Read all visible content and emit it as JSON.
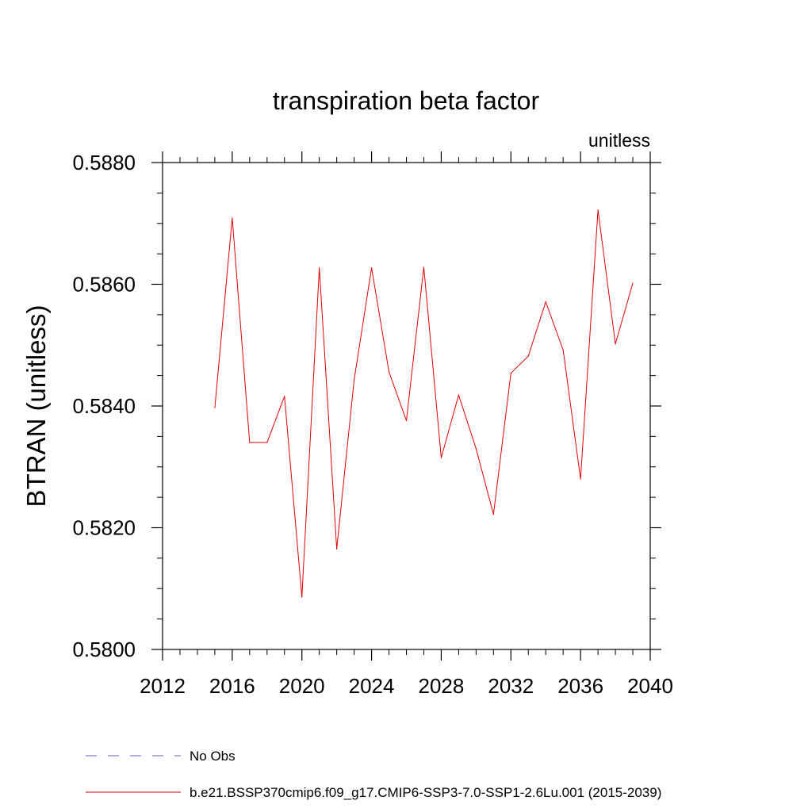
{
  "chart_data": {
    "type": "line",
    "title": "transpiration beta factor",
    "units_label": "unitless",
    "ylabel": "BTRAN  (unitless)",
    "xlabel": "",
    "xlim": [
      2012,
      2040
    ],
    "ylim": [
      0.58,
      0.588
    ],
    "x_ticks": [
      2012,
      2016,
      2020,
      2024,
      2028,
      2032,
      2036,
      2040
    ],
    "x_tick_labels": [
      "2012",
      "2016",
      "2020",
      "2024",
      "2028",
      "2032",
      "2036",
      "2040"
    ],
    "x_minor_step": 1,
    "y_ticks": [
      0.58,
      0.582,
      0.584,
      0.586,
      0.588
    ],
    "y_tick_labels": [
      "0.5800",
      "0.5820",
      "0.5840",
      "0.5860",
      "0.5880"
    ],
    "y_minor_step": 0.0005,
    "grid": false,
    "legend_position": "bottom",
    "legend": [
      {
        "name": "No Obs",
        "color": "#6a5acd",
        "dash": "dashed"
      },
      {
        "name": "b.e21.BSSP370cmip6.f09_g17.CMIP6-SSP3-7.0-SSP1-2.6Lu.001 (2015-2039)",
        "color": "#e00000",
        "dash": "solid"
      }
    ],
    "series": [
      {
        "name": "b.e21.BSSP370cmip6.f09_g17.CMIP6-SSP3-7.0-SSP1-2.6Lu.001 (2015-2039)",
        "color": "#e00000",
        "x": [
          2015,
          2016,
          2017,
          2018,
          2019,
          2020,
          2021,
          2022,
          2023,
          2024,
          2025,
          2026,
          2027,
          2028,
          2029,
          2030,
          2031,
          2032,
          2033,
          2034,
          2035,
          2036,
          2037,
          2038,
          2039
        ],
        "values": [
          0.58397,
          0.58709,
          0.5834,
          0.5834,
          0.58416,
          0.58086,
          0.58627,
          0.58165,
          0.58443,
          0.58627,
          0.58456,
          0.58376,
          0.58628,
          0.58315,
          0.58418,
          0.5833,
          0.58222,
          0.58454,
          0.58482,
          0.58571,
          0.58492,
          0.5828,
          0.58722,
          0.58502,
          0.58602
        ]
      }
    ]
  }
}
